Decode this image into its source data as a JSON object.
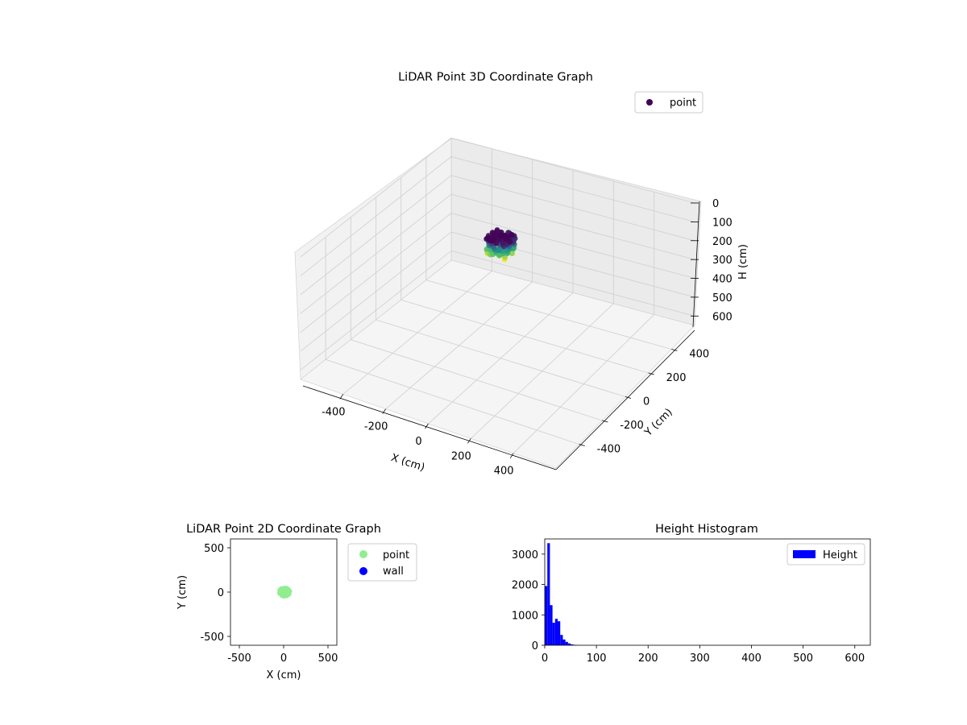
{
  "chart_data": [
    {
      "type": "scatter",
      "title": "LiDAR Point 3D Coordinate Graph",
      "xlabel": "X (cm)",
      "ylabel": "Y (cm)",
      "zlabel": "H (cm)",
      "xlim": [
        -600,
        600
      ],
      "ylim": [
        -600,
        600
      ],
      "zlim": [
        0,
        650
      ],
      "z_inverted": true,
      "x_ticks": [
        "-400",
        "-200",
        "0",
        "200",
        "400"
      ],
      "y_ticks": [
        "-400",
        "-200",
        "0",
        "200",
        "400"
      ],
      "z_ticks": [
        "0",
        "100",
        "200",
        "300",
        "400",
        "500",
        "600"
      ],
      "legend": [
        "point"
      ],
      "legend_position": "top-right",
      "grid": true,
      "colormap": "viridis",
      "series": [
        {
          "name": "point",
          "color": "#440154",
          "cluster": {
            "x_center": 0,
            "y_center": 0,
            "radius_xy": 60,
            "h_min": 0,
            "h_max": 90
          }
        }
      ]
    },
    {
      "type": "scatter",
      "title": "LiDAR Point 2D Coordinate Graph",
      "xlabel": "X (cm)",
      "ylabel": "Y (cm)",
      "xlim": [
        -600,
        600
      ],
      "ylim": [
        -600,
        600
      ],
      "x_ticks": [
        "-500",
        "0",
        "500"
      ],
      "y_ticks": [
        "-500",
        "0",
        "500"
      ],
      "legend": [
        "point",
        "wall"
      ],
      "legend_position": "outside-right",
      "grid": false,
      "series": [
        {
          "name": "point",
          "color": "#90ee90",
          "cluster": {
            "x_center": 10,
            "y_center": 0,
            "radius": 55
          }
        },
        {
          "name": "wall",
          "color": "#0000ff",
          "points": []
        }
      ]
    },
    {
      "type": "bar",
      "title": "Height Histogram",
      "xlabel": "",
      "ylabel": "",
      "xlim": [
        0,
        630
      ],
      "ylim": [
        0,
        3500
      ],
      "x_ticks": [
        "0",
        "100",
        "200",
        "300",
        "400",
        "500",
        "600"
      ],
      "y_ticks": [
        "0",
        "1000",
        "2000",
        "3000"
      ],
      "legend": [
        "Height"
      ],
      "legend_position": "top-right",
      "grid": false,
      "series": [
        {
          "name": "Height",
          "color": "#0000ff",
          "bin_width": 5,
          "bins": [
            0,
            5,
            10,
            15,
            20,
            25,
            30,
            35,
            40,
            45,
            50,
            55,
            60,
            65
          ],
          "counts": [
            1950,
            3360,
            1320,
            740,
            870,
            790,
            340,
            190,
            110,
            60,
            30,
            15,
            5,
            2
          ]
        }
      ]
    }
  ]
}
